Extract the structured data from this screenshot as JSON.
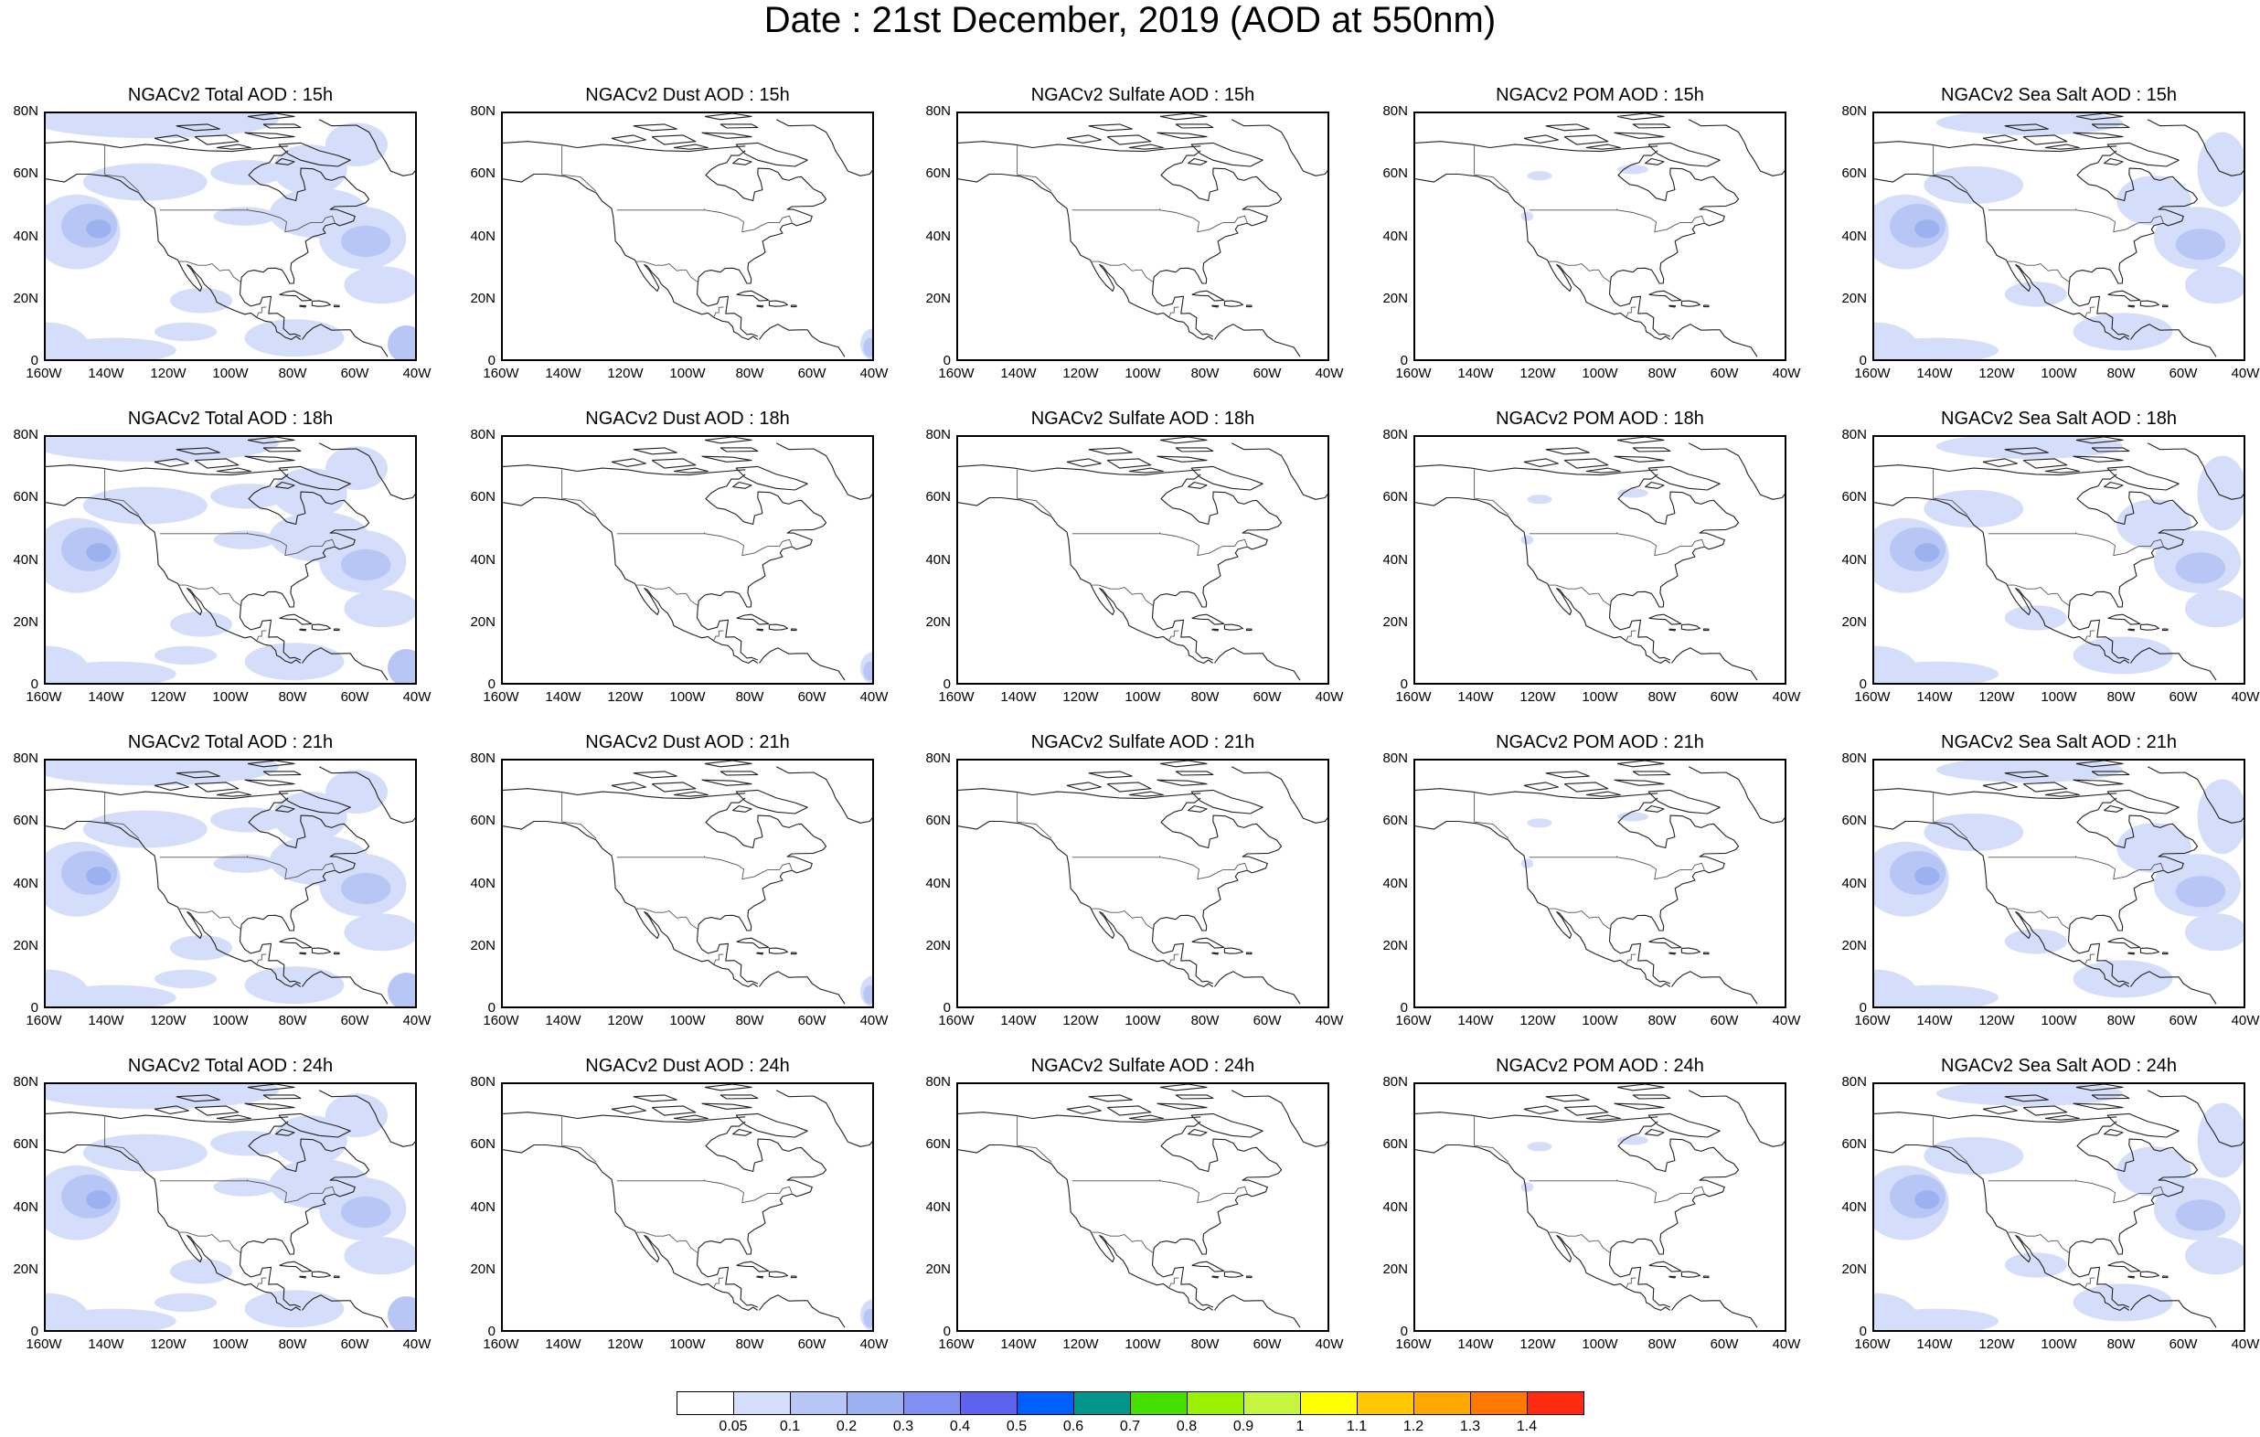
{
  "title": "Date : 21st December, 2019 (AOD at 550nm)",
  "colors": {
    "coast": "#222222",
    "shades": {
      "l1": "#d4ddf9",
      "l2": "#b7c6f5",
      "l3": "#9cb1f0"
    }
  },
  "lat_labels": [
    "80N",
    "60N",
    "40N",
    "20N",
    "0"
  ],
  "lon_labels": [
    "160W",
    "140W",
    "120W",
    "100W",
    "80W",
    "60W",
    "40W"
  ],
  "rows": [
    {
      "hour": "15h",
      "titles": [
        "NGACv2 Total AOD : 15h",
        "NGACv2 Dust AOD : 15h",
        "NGACv2 Sulfate AOD : 15h",
        "NGACv2 POM AOD : 15h",
        "NGACv2 Sea Salt AOD : 15h"
      ]
    },
    {
      "hour": "18h",
      "titles": [
        "NGACv2 Total AOD : 18h",
        "NGACv2 Dust AOD : 18h",
        "NGACv2 Sulfate AOD : 18h",
        "NGACv2 POM AOD : 18h",
        "NGACv2 Sea Salt AOD : 18h"
      ]
    },
    {
      "hour": "21h",
      "titles": [
        "NGACv2 Total AOD : 21h",
        "NGACv2 Dust AOD : 21h",
        "NGACv2 Sulfate AOD : 21h",
        "NGACv2 POM AOD : 21h",
        "NGACv2 Sea Salt AOD : 21h"
      ]
    },
    {
      "hour": "24h",
      "titles": [
        "NGACv2 Total AOD : 24h",
        "NGACv2 Dust AOD : 24h",
        "NGACv2 Sulfate AOD : 24h",
        "NGACv2 POM AOD : 24h",
        "NGACv2 Sea Salt  AOD : 24h"
      ]
    }
  ],
  "columns": [
    "total",
    "dust",
    "sulfate",
    "pom",
    "seasalt"
  ],
  "colorbar": {
    "colors": [
      "#ffffff",
      "#d4ddf9",
      "#b7c6f5",
      "#9cb1f0",
      "#8090f0",
      "#5e63ee",
      "#0060ff",
      "#00968c",
      "#44e000",
      "#9bf200",
      "#c6f540",
      "#ffff00",
      "#ffc800",
      "#ffa800",
      "#ff7800",
      "#ff2a10"
    ],
    "labels": [
      "0.05",
      "0.1",
      "0.2",
      "0.3",
      "0.4",
      "0.5",
      "0.6",
      "0.7",
      "0.8",
      "0.9",
      "1",
      "1.1",
      "1.2",
      "1.3",
      "1.4"
    ]
  }
}
